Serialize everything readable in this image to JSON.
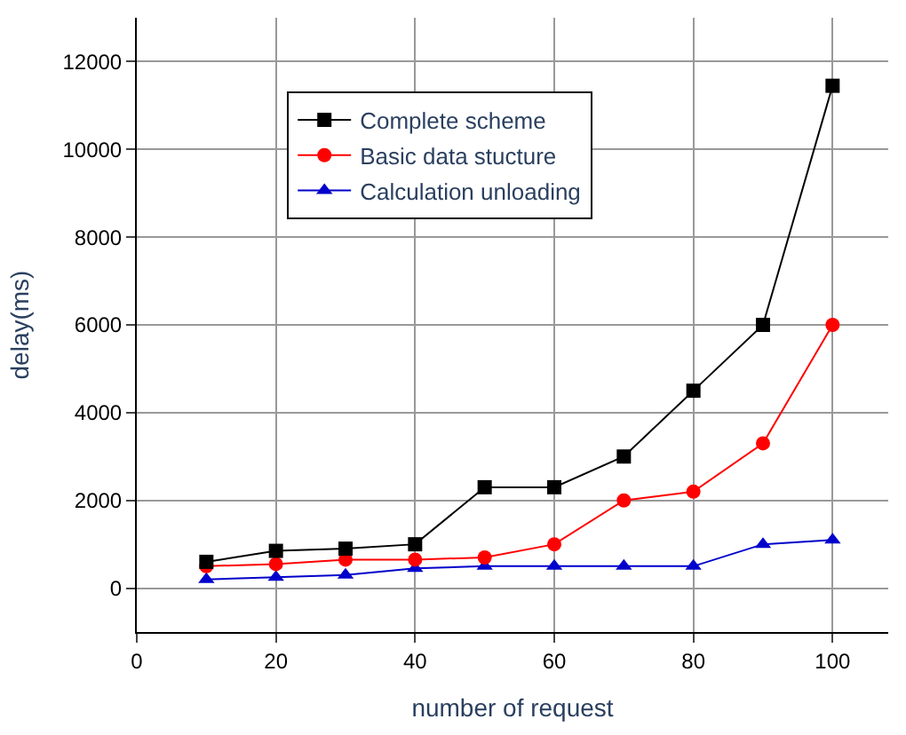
{
  "chart_data": {
    "type": "line",
    "xlabel": "number of request",
    "ylabel": "delay(ms)",
    "x": [
      10,
      20,
      30,
      40,
      50,
      60,
      70,
      80,
      90,
      100
    ],
    "series": [
      {
        "name": "Complete scheme",
        "color": "#000000",
        "marker": "square",
        "values": [
          600,
          850,
          900,
          1000,
          2300,
          2300,
          3000,
          4500,
          6000,
          11450
        ]
      },
      {
        "name": "Basic data stucture",
        "color": "#ff0000",
        "marker": "circle",
        "values": [
          500,
          550,
          650,
          650,
          700,
          1000,
          2000,
          2200,
          3300,
          6000
        ]
      },
      {
        "name": "Calculation unloading",
        "color": "#0000cc",
        "marker": "triangle",
        "values": [
          200,
          250,
          300,
          450,
          500,
          500,
          500,
          500,
          1000,
          1100
        ]
      }
    ],
    "xlim": [
      0,
      108
    ],
    "xticks": [
      0,
      20,
      40,
      60,
      80,
      100
    ],
    "ylim": [
      -1000,
      13000
    ],
    "yticks": [
      0,
      2000,
      4000,
      6000,
      8000,
      10000,
      12000
    ],
    "grid": true,
    "legend": "top left",
    "line_style": "solid"
  }
}
